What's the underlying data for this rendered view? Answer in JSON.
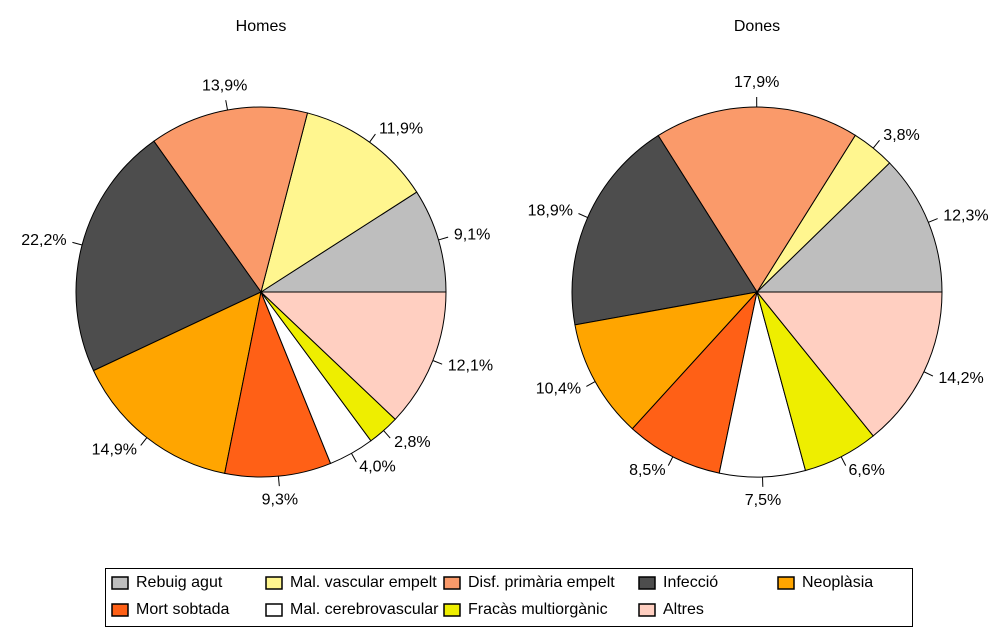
{
  "chart_data": [
    {
      "type": "pie",
      "title": "Homes",
      "categories": [
        "Rebuig agut",
        "Mal. vascular empelt",
        "Disf. primària empelt",
        "Infecció",
        "Neoplàsia",
        "Mort sobtada",
        "Mal. cerebrovascular",
        "Fracàs multiorgànic",
        "Altres"
      ],
      "values": [
        9.1,
        11.9,
        13.9,
        22.2,
        14.9,
        9.3,
        4.0,
        2.8,
        12.1
      ],
      "value_labels": [
        "9,1%",
        "11,9%",
        "13,9%",
        "22,2%",
        "14,9%",
        "9,3%",
        "4,0%",
        "2,8%",
        "12,1%"
      ],
      "colors": [
        "#bebebe",
        "#fff68f",
        "#fa9a6a",
        "#4d4d4d",
        "#ffa500",
        "#ff6016",
        "#ffffff",
        "#eeee00",
        "#ffcfc1"
      ]
    },
    {
      "type": "pie",
      "title": "Dones",
      "categories": [
        "Rebuig agut",
        "Mal. vascular empelt",
        "Disf. primària empelt",
        "Infecció",
        "Neoplàsia",
        "Mort sobtada",
        "Mal. cerebrovascular",
        "Fracàs multiorgànic",
        "Altres"
      ],
      "values": [
        12.3,
        3.8,
        17.9,
        18.9,
        10.4,
        8.5,
        7.5,
        6.6,
        14.2
      ],
      "value_labels": [
        "12,3%",
        "3,8%",
        "17,9%",
        "18,9%",
        "10,4%",
        "8,5%",
        "7,5%",
        "6,6%",
        "14,2%"
      ],
      "colors": [
        "#bebebe",
        "#fff68f",
        "#fa9a6a",
        "#4d4d4d",
        "#ffa500",
        "#ff6016",
        "#ffffff",
        "#eeee00",
        "#ffcfc1"
      ]
    }
  ]
}
